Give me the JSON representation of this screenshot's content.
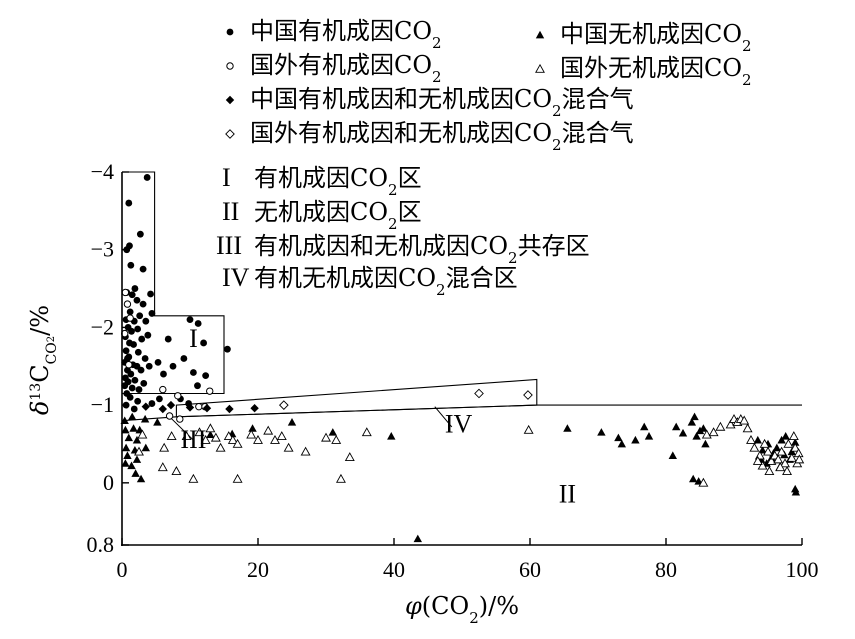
{
  "chart_data": {
    "type": "scatter",
    "xlabel_parts": [
      "φ(CO",
      "2",
      ")/%"
    ],
    "ylabel_parts": [
      "δ",
      "13",
      "C",
      "CO",
      "2",
      "/%"
    ],
    "x_ticks": [
      "0",
      "20",
      "40",
      "60",
      "80",
      "100"
    ],
    "y_ticks": [
      "−4",
      "−3",
      "−2",
      "−1",
      "0",
      "0.8"
    ],
    "xlim": [
      0,
      100
    ],
    "ylim": [
      0.8,
      -4
    ],
    "legend": [
      {
        "key": "cn_org",
        "marker": "dot",
        "text": "中国有机成因CO",
        "sub": "2",
        "after": ""
      },
      {
        "key": "cn_inorg",
        "marker": "triangle",
        "text": "中国无机成因CO",
        "sub": "2",
        "after": ""
      },
      {
        "key": "fr_org",
        "marker": "circle-open",
        "text": "国外有机成因CO",
        "sub": "2",
        "after": ""
      },
      {
        "key": "fr_inorg",
        "marker": "triangle-open",
        "text": "国外无机成因CO",
        "sub": "2",
        "after": ""
      },
      {
        "key": "cn_mix",
        "marker": "diamond",
        "text": "中国有机成因和无机成因CO",
        "sub": "2",
        "after": "混合气"
      },
      {
        "key": "fr_mix",
        "marker": "diamond-open",
        "text": "国外有机成因和无机成因CO",
        "sub": "2",
        "after": "混合气"
      }
    ],
    "zone_legend": [
      {
        "roman": "I",
        "text": "有机成因CO",
        "sub": "2",
        "after": "区"
      },
      {
        "roman": "II",
        "text": "无机成因CO",
        "sub": "2",
        "after": "区"
      },
      {
        "roman": "III",
        "text": "有机成因和无机成因CO",
        "sub": "2",
        "after": "共存区"
      },
      {
        "roman": "IV",
        "text": "有机无机成因CO",
        "sub": "2",
        "after": "混合区"
      }
    ],
    "zone_labels": [
      {
        "text": "I",
        "x": 10.5,
        "y": -1.75
      },
      {
        "text": "II",
        "x": 65.5,
        "y": 0.25
      },
      {
        "text": "III",
        "x": 10.5,
        "y": -0.45
      },
      {
        "text": "IV",
        "x": 49.5,
        "y": -0.65
      }
    ],
    "zone_boundaries": {
      "zone_I": [
        [
          0,
          -4
        ],
        [
          4.8,
          -4
        ],
        [
          4.8,
          -2.15
        ],
        [
          15,
          -2.15
        ],
        [
          15,
          -1.15
        ],
        [
          0,
          -1.15
        ]
      ],
      "zone_IV": [
        [
          8,
          -0.85
        ],
        [
          8,
          -1.0
        ],
        [
          61,
          -1.33
        ],
        [
          61,
          -1.0
        ]
      ],
      "boundary_II": [
        [
          0,
          -0.8
        ],
        [
          8,
          -0.85
        ],
        [
          61,
          -1.0
        ],
        [
          100,
          -1.0
        ]
      ],
      "leader_III": [
        [
          10.5,
          -0.55
        ],
        [
          7,
          -0.85
        ]
      ],
      "leader_IV": [
        [
          48.5,
          -0.72
        ],
        [
          46,
          -0.98
        ]
      ]
    },
    "series": [
      {
        "name": "中国有机成因CO2",
        "marker": "dot",
        "points": [
          [
            3.7,
            -3.93
          ],
          [
            1.0,
            -3.6
          ],
          [
            2.7,
            -3.2
          ],
          [
            1.1,
            -3.05
          ],
          [
            0.7,
            -3.0
          ],
          [
            1.3,
            -2.8
          ],
          [
            3.1,
            -2.75
          ],
          [
            1.9,
            -2.5
          ],
          [
            0.7,
            -2.45
          ],
          [
            1.5,
            -2.42
          ],
          [
            4.2,
            -2.43
          ],
          [
            2.2,
            -2.35
          ],
          [
            0.8,
            -2.3
          ],
          [
            3.1,
            -2.3
          ],
          [
            1.2,
            -2.2
          ],
          [
            4.4,
            -2.18
          ],
          [
            2.6,
            -2.15
          ],
          [
            0.6,
            -2.1
          ],
          [
            1.8,
            -2.08
          ],
          [
            3.5,
            -2.08
          ],
          [
            0.9,
            -2.0
          ],
          [
            2.3,
            -1.98
          ],
          [
            1.4,
            -1.95
          ],
          [
            3.8,
            -1.9
          ],
          [
            0.5,
            -1.88
          ],
          [
            2.9,
            -1.85
          ],
          [
            1.1,
            -1.8
          ],
          [
            1.7,
            -1.78
          ],
          [
            0.6,
            -1.7
          ],
          [
            2.4,
            -1.68
          ],
          [
            1.0,
            -1.62
          ],
          [
            3.4,
            -1.6
          ],
          [
            0.4,
            -1.55
          ],
          [
            1.6,
            -1.52
          ],
          [
            2.2,
            -1.5
          ],
          [
            0.8,
            -1.45
          ],
          [
            2.8,
            -1.45
          ],
          [
            1.3,
            -1.4
          ],
          [
            0.5,
            -1.35
          ],
          [
            1.9,
            -1.32
          ],
          [
            0.9,
            -1.3
          ],
          [
            3.2,
            -1.28
          ],
          [
            0.4,
            -1.25
          ],
          [
            1.5,
            -1.22
          ],
          [
            2.5,
            -1.2
          ],
          [
            0.7,
            -1.15
          ],
          [
            1.2,
            -1.1
          ],
          [
            4.0,
            -1.5
          ],
          [
            5.3,
            -1.55
          ],
          [
            6.1,
            -1.4
          ],
          [
            7.5,
            -1.5
          ],
          [
            6.8,
            -1.85
          ],
          [
            10.0,
            -2.1
          ],
          [
            11.2,
            -2.05
          ],
          [
            9.1,
            -1.6
          ],
          [
            10.5,
            -1.42
          ],
          [
            12.3,
            -1.38
          ],
          [
            11.1,
            -1.25
          ],
          [
            12.0,
            -1.8
          ],
          [
            15.5,
            -1.72
          ],
          [
            8.6,
            -1.08
          ],
          [
            9.8,
            -1.02
          ],
          [
            4.4,
            -1.02
          ],
          [
            5.5,
            -1.08
          ],
          [
            2.3,
            -1.05
          ],
          [
            0.6,
            -1.0
          ],
          [
            1.8,
            -0.95
          ],
          [
            0.8,
            -1.6
          ]
        ]
      },
      {
        "name": "国外有机成因CO2",
        "marker": "circle-open",
        "points": [
          [
            0.5,
            -2.45
          ],
          [
            0.8,
            -2.3
          ],
          [
            1.2,
            -2.12
          ],
          [
            0.4,
            -1.92
          ],
          [
            1.0,
            -1.52
          ],
          [
            6.0,
            -1.2
          ],
          [
            8.2,
            -1.12
          ],
          [
            12.9,
            -1.18
          ],
          [
            11.3,
            -0.98
          ],
          [
            12.2,
            -0.98
          ],
          [
            7.0,
            -0.86
          ],
          [
            8.5,
            -0.82
          ]
        ]
      },
      {
        "name": "中国有机成因和无机成因CO2混合气",
        "marker": "diamond",
        "points": [
          [
            7.2,
            -1.0
          ],
          [
            10.0,
            -0.97
          ],
          [
            12.5,
            -0.96
          ],
          [
            15.8,
            -0.95
          ],
          [
            19.5,
            -0.96
          ],
          [
            3.5,
            -0.98
          ],
          [
            6.0,
            -0.95
          ]
        ]
      },
      {
        "name": "国外有机成因和无机成因CO2混合气",
        "marker": "diamond-open",
        "points": [
          [
            23.8,
            -1.0
          ],
          [
            52.5,
            -1.15
          ],
          [
            59.7,
            -1.13
          ]
        ]
      },
      {
        "name": "中国无机成因CO2",
        "marker": "triangle",
        "points": [
          [
            0.4,
            -0.8
          ],
          [
            1.5,
            -0.85
          ],
          [
            3.4,
            -0.82
          ],
          [
            5.2,
            -0.78
          ],
          [
            0.5,
            -0.68
          ],
          [
            1.7,
            -0.7
          ],
          [
            2.6,
            -0.68
          ],
          [
            1.0,
            -0.58
          ],
          [
            2.2,
            -0.55
          ],
          [
            0.6,
            -0.45
          ],
          [
            1.9,
            -0.42
          ],
          [
            0.5,
            -0.25
          ],
          [
            2.2,
            -0.3
          ],
          [
            1.4,
            -0.22
          ],
          [
            2.0,
            -0.12
          ],
          [
            0.8,
            -0.35
          ],
          [
            3.5,
            -0.45
          ],
          [
            2.8,
            -0.05
          ],
          [
            13.0,
            -0.62
          ],
          [
            16.2,
            -0.63
          ],
          [
            19.2,
            -0.7
          ],
          [
            25.0,
            -0.78
          ],
          [
            31.0,
            -0.65
          ],
          [
            39.6,
            -0.6
          ],
          [
            43.5,
            0.72
          ],
          [
            65.5,
            -0.7
          ],
          [
            70.5,
            -0.65
          ],
          [
            73.0,
            -0.58
          ],
          [
            73.5,
            -0.5
          ],
          [
            75.5,
            -0.55
          ],
          [
            76.8,
            -0.72
          ],
          [
            77.5,
            -0.6
          ],
          [
            81.0,
            -0.35
          ],
          [
            81.5,
            -0.72
          ],
          [
            82.5,
            -0.64
          ],
          [
            83.8,
            -0.78
          ],
          [
            84.2,
            -0.85
          ],
          [
            84.5,
            -0.6
          ],
          [
            85.0,
            -0.67
          ],
          [
            85.5,
            -0.7
          ],
          [
            84.0,
            -0.05
          ],
          [
            85.8,
            -0.5
          ],
          [
            84.8,
            -0.02
          ],
          [
            93.5,
            -0.55
          ],
          [
            94.2,
            -0.42
          ],
          [
            95.0,
            -0.5
          ],
          [
            95.8,
            -0.38
          ],
          [
            96.3,
            -0.45
          ],
          [
            97.0,
            -0.55
          ],
          [
            97.6,
            -0.6
          ],
          [
            98.2,
            -0.3
          ],
          [
            98.5,
            -0.4
          ],
          [
            99.0,
            -0.52
          ],
          [
            99.0,
            0.08
          ],
          [
            99.1,
            0.12
          ],
          [
            94.0,
            -0.3
          ],
          [
            94.8,
            -0.25
          ],
          [
            95.5,
            -0.32
          ],
          [
            96.7,
            -0.2
          ],
          [
            97.4,
            -0.36
          ]
        ]
      },
      {
        "name": "国外无机成因CO2",
        "marker": "triangle-open",
        "points": [
          [
            2.5,
            -0.4
          ],
          [
            3.0,
            -0.62
          ],
          [
            6.0,
            -0.2
          ],
          [
            6.2,
            -0.45
          ],
          [
            7.3,
            -0.6
          ],
          [
            8.0,
            -0.15
          ],
          [
            9.5,
            -0.6
          ],
          [
            10.5,
            -0.05
          ],
          [
            11.4,
            -0.65
          ],
          [
            12.3,
            -0.55
          ],
          [
            13.0,
            -0.7
          ],
          [
            13.8,
            -0.58
          ],
          [
            14.5,
            -0.45
          ],
          [
            15.7,
            -0.6
          ],
          [
            16.3,
            -0.55
          ],
          [
            17.0,
            -0.5
          ],
          [
            19.0,
            -0.62
          ],
          [
            20.0,
            -0.55
          ],
          [
            21.5,
            -0.67
          ],
          [
            22.5,
            -0.55
          ],
          [
            23.5,
            -0.6
          ],
          [
            24.5,
            -0.45
          ],
          [
            27.0,
            -0.4
          ],
          [
            30.0,
            -0.58
          ],
          [
            31.5,
            -0.55
          ],
          [
            32.2,
            -0.05
          ],
          [
            33.5,
            -0.33
          ],
          [
            17.0,
            -0.05
          ],
          [
            36.0,
            -0.65
          ],
          [
            59.8,
            -0.68
          ],
          [
            85.5,
            0.0
          ],
          [
            86.0,
            -0.62
          ],
          [
            87.0,
            -0.65
          ],
          [
            88.0,
            -0.72
          ],
          [
            89.5,
            -0.75
          ],
          [
            90.0,
            -0.82
          ],
          [
            90.5,
            -0.78
          ],
          [
            91.0,
            -0.82
          ],
          [
            91.5,
            -0.8
          ],
          [
            92.0,
            -0.7
          ],
          [
            92.5,
            -0.55
          ],
          [
            93.0,
            -0.45
          ],
          [
            93.8,
            -0.35
          ],
          [
            94.5,
            -0.5
          ],
          [
            95.0,
            -0.4
          ],
          [
            95.5,
            -0.28
          ],
          [
            96.0,
            -0.35
          ],
          [
            96.5,
            -0.3
          ],
          [
            97.0,
            -0.4
          ],
          [
            97.5,
            -0.25
          ],
          [
            98.0,
            -0.5
          ],
          [
            98.5,
            -0.32
          ],
          [
            99.0,
            -0.45
          ],
          [
            99.5,
            -0.38
          ],
          [
            99.3,
            -0.25
          ],
          [
            98.8,
            -0.6
          ],
          [
            97.8,
            -0.15
          ],
          [
            96.8,
            -0.2
          ],
          [
            95.2,
            -0.15
          ],
          [
            94.2,
            -0.22
          ],
          [
            93.5,
            -0.28
          ],
          [
            99.6,
            -0.3
          ]
        ]
      }
    ]
  }
}
